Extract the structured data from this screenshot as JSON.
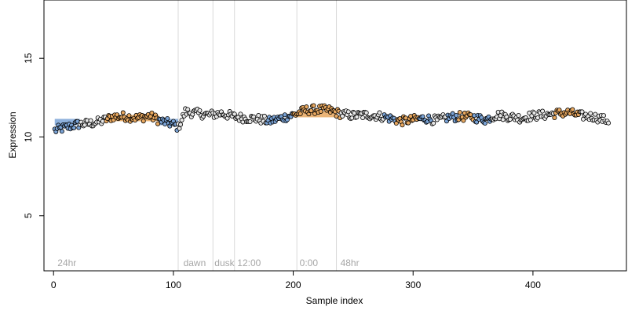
{
  "chart_data": {
    "type": "scatter",
    "title": "",
    "xlabel": "Sample index",
    "ylabel": "Expression",
    "xlim": [
      -8,
      478
    ],
    "ylim": [
      1.5,
      18.7
    ],
    "x_ticks": [
      0,
      100,
      200,
      300,
      400
    ],
    "x_tick_labels": [
      "0",
      "100",
      "200",
      "300",
      "400"
    ],
    "y_ticks": [
      5,
      10,
      15
    ],
    "y_tick_labels": [
      "5",
      "10",
      "15"
    ],
    "grid": false,
    "legend": "none",
    "vertical_markers": [
      {
        "x": 104,
        "label": ""
      },
      {
        "x": 133,
        "label": ""
      },
      {
        "x": 151,
        "label": ""
      },
      {
        "x": 203,
        "label": ""
      },
      {
        "x": 236,
        "label": ""
      }
    ],
    "annotations": [
      {
        "x": 2,
        "y": 2.0,
        "label": "24hr"
      },
      {
        "x": 107,
        "y": 2.0,
        "label": "dawn"
      },
      {
        "x": 133,
        "y": 2.0,
        "label": "dusk"
      },
      {
        "x": 152,
        "y": 2.0,
        "label": "12:00"
      },
      {
        "x": 204,
        "y": 2.0,
        "label": "0:00"
      },
      {
        "x": 238,
        "y": 2.0,
        "label": "48hr"
      }
    ],
    "segments": [
      {
        "x_start": 1,
        "x_end": 22,
        "y": 10.95,
        "color": "#7aa3d6"
      },
      {
        "x_start": 44,
        "x_end": 88,
        "y": 11.2,
        "color": "#e8a860"
      },
      {
        "x_start": 88,
        "x_end": 104,
        "y": 10.95,
        "color": "#7aa3d6"
      },
      {
        "x_start": 203,
        "x_end": 236,
        "y": 11.45,
        "color": "#e8a860"
      }
    ],
    "regions": [
      {
        "x_start": 0,
        "x_end": 22,
        "color": "#7aa3d6"
      },
      {
        "x_start": 22,
        "x_end": 44,
        "color": "#000000"
      },
      {
        "x_start": 44,
        "x_end": 88,
        "color": "#e8a860"
      },
      {
        "x_start": 88,
        "x_end": 104,
        "color": "#7aa3d6"
      },
      {
        "x_start": 104,
        "x_end": 178,
        "color": "#000000"
      },
      {
        "x_start": 178,
        "x_end": 200,
        "color": "#7aa3d6"
      },
      {
        "x_start": 200,
        "x_end": 240,
        "color": "#e8a860"
      },
      {
        "x_start": 240,
        "x_end": 276,
        "color": "#000000"
      },
      {
        "x_start": 276,
        "x_end": 286,
        "color": "#7aa3d6"
      },
      {
        "x_start": 286,
        "x_end": 305,
        "color": "#e8a860"
      },
      {
        "x_start": 305,
        "x_end": 316,
        "color": "#7aa3d6"
      },
      {
        "x_start": 316,
        "x_end": 328,
        "color": "#000000"
      },
      {
        "x_start": 328,
        "x_end": 338,
        "color": "#7aa3d6"
      },
      {
        "x_start": 338,
        "x_end": 351,
        "color": "#e8a860"
      },
      {
        "x_start": 351,
        "x_end": 366,
        "color": "#7aa3d6"
      },
      {
        "x_start": 366,
        "x_end": 418,
        "color": "#000000"
      },
      {
        "x_start": 418,
        "x_end": 440,
        "color": "#e8a860"
      },
      {
        "x_start": 440,
        "x_end": 462,
        "color": "#000000"
      }
    ],
    "trend": [
      [
        0,
        10.4
      ],
      [
        10,
        10.6
      ],
      [
        20,
        10.8
      ],
      [
        30,
        10.85
      ],
      [
        40,
        11.0
      ],
      [
        50,
        11.3
      ],
      [
        60,
        11.3
      ],
      [
        70,
        11.2
      ],
      [
        80,
        11.35
      ],
      [
        90,
        11.0
      ],
      [
        100,
        10.8
      ],
      [
        104,
        10.6
      ],
      [
        110,
        11.6
      ],
      [
        120,
        11.5
      ],
      [
        130,
        11.4
      ],
      [
        140,
        11.5
      ],
      [
        150,
        11.3
      ],
      [
        160,
        11.2
      ],
      [
        170,
        11.15
      ],
      [
        180,
        11.0
      ],
      [
        190,
        11.2
      ],
      [
        200,
        11.4
      ],
      [
        210,
        11.7
      ],
      [
        220,
        11.75
      ],
      [
        230,
        11.7
      ],
      [
        240,
        11.45
      ],
      [
        250,
        11.35
      ],
      [
        260,
        11.4
      ],
      [
        270,
        11.35
      ],
      [
        280,
        11.2
      ],
      [
        290,
        11.0
      ],
      [
        300,
        11.1
      ],
      [
        310,
        11.2
      ],
      [
        320,
        11.05
      ],
      [
        330,
        11.25
      ],
      [
        340,
        11.3
      ],
      [
        350,
        11.25
      ],
      [
        360,
        11.1
      ],
      [
        370,
        11.4
      ],
      [
        380,
        11.3
      ],
      [
        390,
        11.2
      ],
      [
        400,
        11.35
      ],
      [
        410,
        11.4
      ],
      [
        420,
        11.5
      ],
      [
        430,
        11.55
      ],
      [
        440,
        11.35
      ],
      [
        450,
        11.3
      ],
      [
        462,
        11.05
      ]
    ],
    "n_points": 463,
    "point_fill_default": "#e6e6e6",
    "point_stroke": "#000000"
  }
}
